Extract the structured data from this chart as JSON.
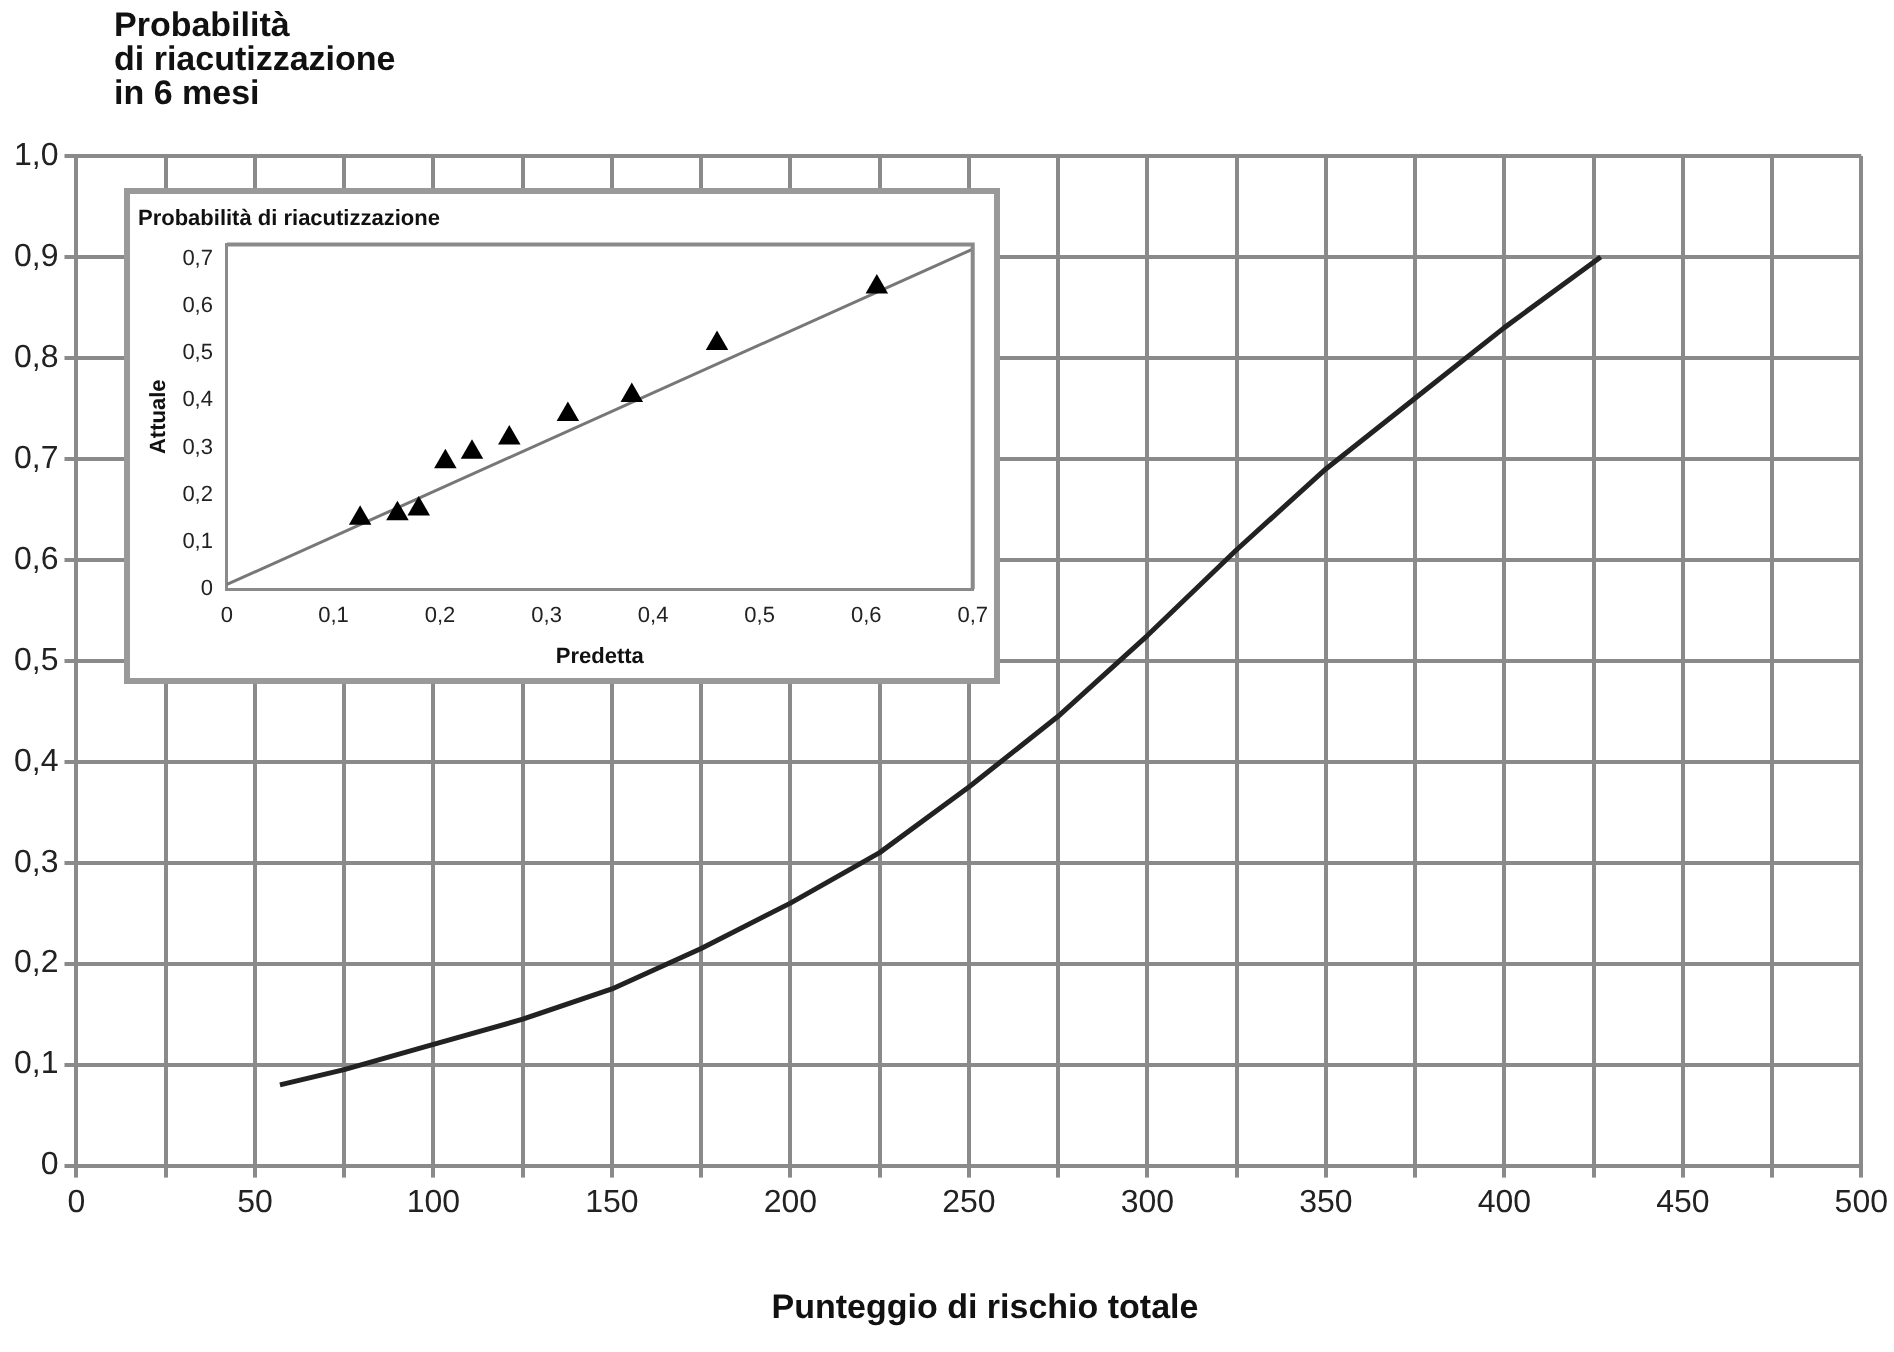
{
  "chart_data": [
    {
      "type": "line",
      "xlabel": "Punteggio di rischio totale",
      "ylabel": "Probabilità\ndi riacutizzazione\nin 6 mesi",
      "x": [
        57,
        75,
        100,
        125,
        150,
        175,
        200,
        225,
        250,
        275,
        300,
        325,
        350,
        375,
        400,
        427
      ],
      "series": [
        {
          "color": "#222222",
          "values": [
            0.08,
            0.095,
            0.12,
            0.145,
            0.175,
            0.215,
            0.26,
            0.31,
            0.375,
            0.445,
            0.525,
            0.61,
            0.69,
            0.76,
            0.83,
            0.9
          ]
        }
      ],
      "xlim": [
        0,
        500
      ],
      "xticks": [
        0,
        {
          "value": 25,
          "label": null
        },
        50,
        {
          "value": 75,
          "label": null
        },
        100,
        {
          "value": 125,
          "label": null
        },
        150,
        {
          "value": 175,
          "label": null
        },
        200,
        {
          "value": 225,
          "label": null
        },
        250,
        {
          "value": 275,
          "label": null
        },
        300,
        {
          "value": 325,
          "label": null
        },
        350,
        {
          "value": 375,
          "label": null
        },
        400,
        {
          "value": 425,
          "label": null
        },
        450,
        {
          "value": 475,
          "label": null
        },
        500
      ],
      "ylim": [
        0,
        1
      ],
      "yticks": [
        0,
        {
          "value": 0.1,
          "label": "0,1"
        },
        {
          "value": 0.2,
          "label": "0,2"
        },
        {
          "value": 0.3,
          "label": "0,3"
        },
        {
          "value": 0.4,
          "label": "0,4"
        },
        {
          "value": 0.5,
          "label": "0,5"
        },
        {
          "value": 0.6,
          "label": "0,6"
        },
        {
          "value": 0.7,
          "label": "0,7"
        },
        {
          "value": 0.8,
          "label": "0,8"
        },
        {
          "value": 0.9,
          "label": "0,9"
        },
        {
          "value": 1.0,
          "label": "1,0"
        }
      ],
      "grid": true,
      "marker": "none",
      "line_style": "solid"
    },
    {
      "type": "scatter",
      "title": "Probabilità di riacutizzazione",
      "xlabel": "Predetta",
      "ylabel": "Attuale",
      "marker": "triangle",
      "series": [
        {
          "color": "#000000",
          "x": [
            0.125,
            0.16,
            0.18,
            0.205,
            0.23,
            0.265,
            0.32,
            0.38,
            0.46,
            0.61
          ],
          "values": [
            0.15,
            0.16,
            0.17,
            0.27,
            0.29,
            0.32,
            0.37,
            0.41,
            0.52,
            0.64
          ]
        },
        {
          "type": "line",
          "marker": "none",
          "color": "#777777",
          "x": [
            0,
            0.7
          ],
          "values": [
            0.01,
            0.72
          ]
        }
      ],
      "xlim": [
        0,
        0.7
      ],
      "xticks": [
        0,
        {
          "value": 0.1,
          "label": "0,1"
        },
        {
          "value": 0.2,
          "label": "0,2"
        },
        {
          "value": 0.3,
          "label": "0,3"
        },
        {
          "value": 0.4,
          "label": "0,4"
        },
        {
          "value": 0.5,
          "label": "0,5"
        },
        {
          "value": 0.6,
          "label": "0,6"
        },
        {
          "value": 0.7,
          "label": "0,7"
        }
      ],
      "ylim": [
        0,
        0.73
      ],
      "yticks": [
        0,
        {
          "value": 0.1,
          "label": "0,1"
        },
        {
          "value": 0.2,
          "label": "0,2"
        },
        {
          "value": 0.3,
          "label": "0,3"
        },
        {
          "value": 0.4,
          "label": "0,4"
        },
        {
          "value": 0.5,
          "label": "0,5"
        },
        {
          "value": 0.6,
          "label": "0,6"
        },
        {
          "value": 0.7,
          "label": "0,7"
        }
      ]
    }
  ]
}
